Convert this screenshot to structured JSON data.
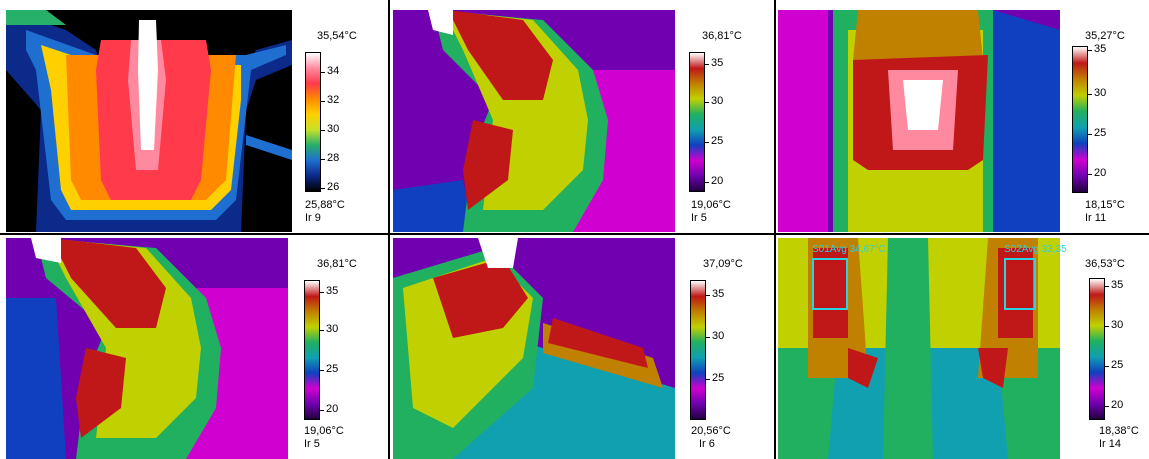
{
  "palettes": {
    "grey": [
      "#000000",
      "#0b2a8a",
      "#1f6fd0",
      "#27b06a",
      "#c8e02a",
      "#ffd000",
      "#ff8a00",
      "#ff3a4a",
      "#ff8aa0",
      "#ffffff"
    ],
    "iron": [
      "#200040",
      "#7000b0",
      "#d000d0",
      "#1040c0",
      "#10a0b0",
      "#20b060",
      "#c0d000",
      "#c08000",
      "#c01818",
      "#ffffff"
    ]
  },
  "panels": [
    {
      "id": "p1",
      "max": "35,54°C",
      "min": "25,88°C",
      "ir": "Ir 9",
      "ticks": [
        "34",
        "32",
        "30",
        "28",
        "26"
      ],
      "palette": "grey"
    },
    {
      "id": "p2",
      "max": "36,81°C",
      "min": "19,06°C",
      "ir": "Ir 5",
      "ticks": [
        "35",
        "30",
        "25",
        "20"
      ],
      "palette": "iron"
    },
    {
      "id": "p3",
      "max": "35,27°C",
      "min": "18,15°C",
      "ir": "Ir 11",
      "ticks": [
        "35",
        "30",
        "25",
        "20"
      ],
      "palette": "iron"
    },
    {
      "id": "p4",
      "max": "36,81°C",
      "min": "19,06°C",
      "ir": "Ir 5",
      "ticks": [
        "35",
        "30",
        "25",
        "20"
      ],
      "palette": "iron"
    },
    {
      "id": "p5",
      "max": "37,09°C",
      "min": "20,56°C",
      "ir": "Ir 6",
      "ticks": [
        "35",
        "30",
        "25"
      ],
      "palette": "iron"
    },
    {
      "id": "p6",
      "max": "36,53°C",
      "min": "18,38°C",
      "ir": "Ir 14",
      "ticks": [
        "35",
        "30",
        "25",
        "20"
      ],
      "palette": "iron",
      "rois": [
        {
          "label": "S01Avg 34,67°C"
        },
        {
          "label": "S02Avg 33,35"
        }
      ]
    }
  ]
}
